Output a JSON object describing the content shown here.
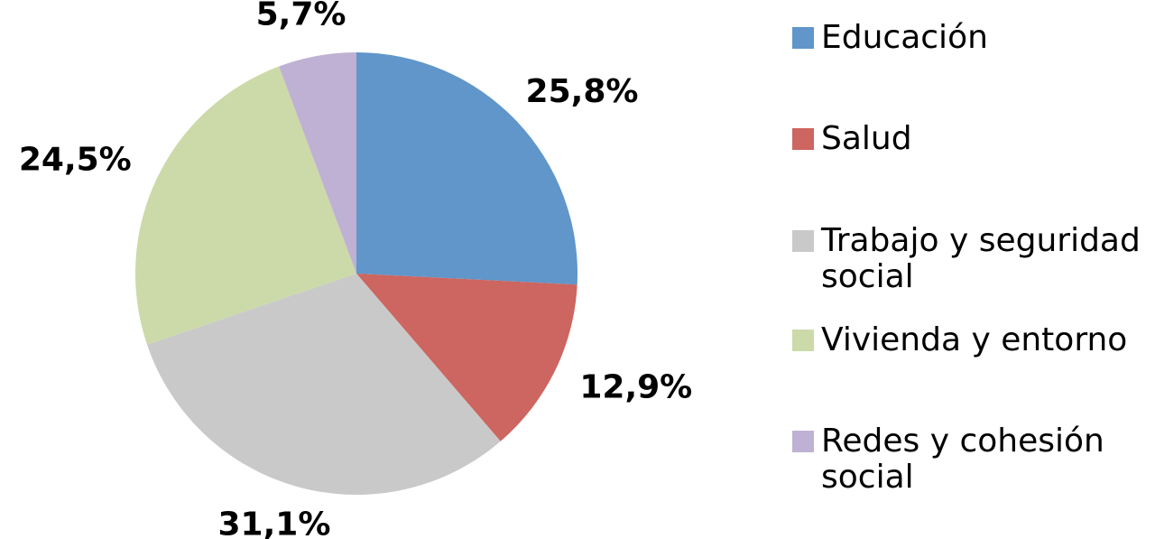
{
  "chart_data": {
    "type": "pie",
    "categories": [
      "Educación",
      "Salud",
      "Trabajo y seguridad social",
      "Vivienda y entorno",
      "Redes y cohesión social"
    ],
    "values": [
      25.8,
      12.9,
      31.1,
      24.5,
      5.7
    ],
    "value_labels": [
      "25,8%",
      "12,9%",
      "31,1%",
      "24,5%",
      "5,7%"
    ],
    "colors": [
      "#6096c9",
      "#cd6560",
      "#c9c9c9",
      "#cbdaa8",
      "#bfb1d3"
    ],
    "legend": "right"
  }
}
